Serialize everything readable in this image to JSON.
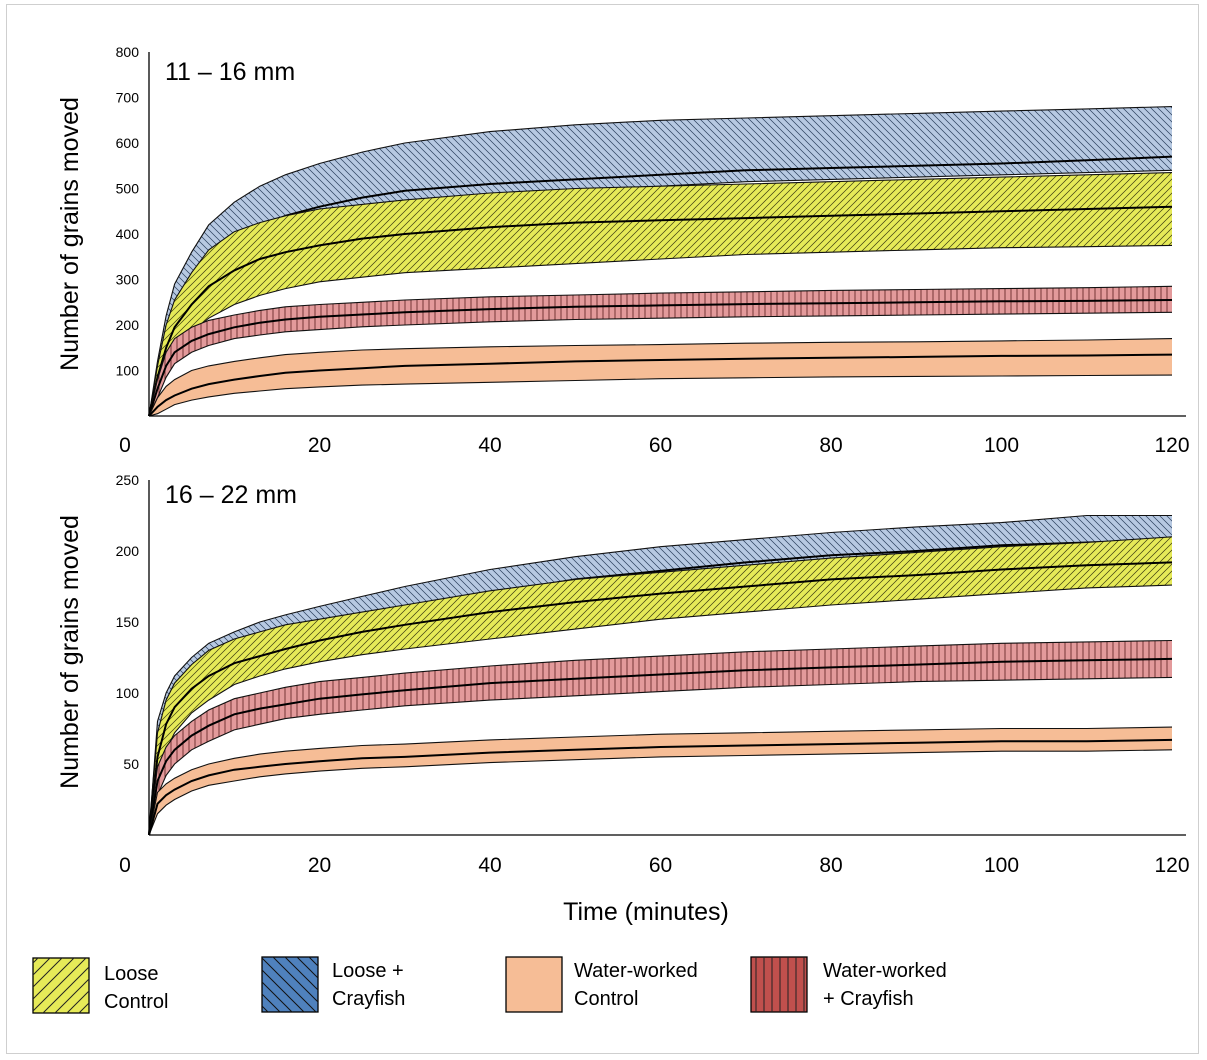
{
  "chart_data": [
    {
      "type": "area",
      "panel_label": "11 – 16 mm",
      "ylabel": "Number of grains moved",
      "xlabel": "",
      "xlim": [
        0,
        120
      ],
      "ylim": [
        0,
        800
      ],
      "x_ticks": [
        "0",
        "20",
        "40",
        "60",
        "80",
        "100",
        "120"
      ],
      "y_ticks": [
        "100",
        "200",
        "300",
        "400",
        "500",
        "600",
        "700",
        "800"
      ],
      "x": [
        0,
        1,
        2,
        3,
        5,
        7,
        10,
        13,
        16,
        20,
        25,
        30,
        40,
        50,
        60,
        70,
        80,
        90,
        100,
        110,
        120
      ],
      "series": [
        {
          "name": "Loose + Crayfish",
          "color": "#b7c9e2",
          "pattern": "back-diagonal",
          "upper": [
            0,
            120,
            220,
            290,
            360,
            420,
            470,
            505,
            530,
            555,
            580,
            600,
            625,
            640,
            650,
            655,
            660,
            665,
            670,
            675,
            680
          ],
          "mean": [
            0,
            90,
            165,
            220,
            290,
            335,
            385,
            415,
            440,
            460,
            480,
            495,
            510,
            520,
            530,
            540,
            545,
            550,
            555,
            562,
            570
          ],
          "lower": [
            0,
            70,
            125,
            175,
            240,
            285,
            335,
            370,
            395,
            420,
            440,
            455,
            480,
            495,
            505,
            515,
            520,
            525,
            530,
            535,
            540
          ]
        },
        {
          "name": "Loose Control",
          "color": "#e6ea58",
          "pattern": "forward-diagonal",
          "upper": [
            0,
            110,
            200,
            255,
            315,
            365,
            405,
            425,
            440,
            455,
            465,
            475,
            490,
            500,
            505,
            510,
            515,
            520,
            525,
            530,
            535
          ],
          "mean": [
            0,
            85,
            150,
            195,
            245,
            285,
            320,
            345,
            360,
            375,
            390,
            400,
            415,
            425,
            430,
            435,
            440,
            445,
            450,
            455,
            460
          ],
          "lower": [
            0,
            45,
            100,
            140,
            185,
            215,
            245,
            265,
            280,
            295,
            305,
            315,
            325,
            335,
            345,
            355,
            360,
            365,
            370,
            372,
            375
          ]
        },
        {
          "name": "Water-worked + Crayfish",
          "color": "#e39a9b",
          "pattern": "vertical",
          "upper": [
            0,
            80,
            140,
            170,
            195,
            210,
            222,
            232,
            240,
            245,
            250,
            255,
            262,
            266,
            270,
            273,
            276,
            278,
            280,
            282,
            285
          ],
          "mean": [
            0,
            60,
            110,
            140,
            165,
            180,
            195,
            205,
            212,
            218,
            223,
            228,
            235,
            240,
            243,
            246,
            248,
            250,
            252,
            253,
            255
          ],
          "lower": [
            0,
            40,
            85,
            115,
            140,
            155,
            170,
            178,
            185,
            190,
            196,
            200,
            207,
            212,
            215,
            218,
            220,
            222,
            224,
            226,
            228
          ]
        },
        {
          "name": "Water-worked Control",
          "color": "#f6bd96",
          "pattern": "none",
          "upper": [
            0,
            40,
            65,
            80,
            100,
            110,
            120,
            128,
            135,
            140,
            145,
            148,
            152,
            155,
            157,
            160,
            162,
            163,
            165,
            167,
            170
          ],
          "mean": [
            0,
            20,
            35,
            45,
            60,
            70,
            80,
            88,
            95,
            100,
            105,
            110,
            115,
            120,
            123,
            126,
            128,
            130,
            132,
            133,
            135
          ],
          "lower": [
            0,
            5,
            15,
            25,
            35,
            42,
            50,
            55,
            60,
            64,
            68,
            70,
            74,
            78,
            82,
            84,
            86,
            87,
            88,
            89,
            90
          ]
        }
      ]
    },
    {
      "type": "area",
      "panel_label": "16 – 22 mm",
      "ylabel": "Number of grains moved",
      "xlabel": "Time (minutes)",
      "xlim": [
        0,
        120
      ],
      "ylim": [
        0,
        250
      ],
      "x_ticks": [
        "0",
        "20",
        "40",
        "60",
        "80",
        "100",
        "120"
      ],
      "y_ticks": [
        "50",
        "100",
        "150",
        "200",
        "250"
      ],
      "x": [
        0,
        1,
        2,
        3,
        5,
        7,
        10,
        13,
        16,
        20,
        25,
        30,
        40,
        50,
        60,
        70,
        80,
        90,
        100,
        110,
        120
      ],
      "series": [
        {
          "name": "Loose + Crayfish",
          "color": "#b7c9e2",
          "pattern": "back-diagonal",
          "upper": [
            0,
            80,
            100,
            112,
            125,
            135,
            143,
            150,
            155,
            161,
            168,
            175,
            187,
            196,
            203,
            208,
            213,
            217,
            220,
            225,
            225
          ],
          "mean": [
            0,
            70,
            90,
            100,
            112,
            120,
            130,
            136,
            142,
            148,
            155,
            160,
            170,
            180,
            186,
            192,
            197,
            200,
            204,
            206,
            208
          ],
          "lower": [
            0,
            60,
            80,
            92,
            104,
            112,
            122,
            128,
            133,
            139,
            145,
            150,
            160,
            168,
            174,
            180,
            185,
            189,
            192,
            195,
            196
          ]
        },
        {
          "name": "Loose Control",
          "color": "#e6ea58",
          "pattern": "forward-diagonal",
          "upper": [
            0,
            72,
            95,
            107,
            120,
            130,
            138,
            143,
            148,
            152,
            157,
            162,
            172,
            180,
            185,
            190,
            195,
            199,
            203,
            206,
            210
          ],
          "mean": [
            0,
            55,
            78,
            90,
            103,
            112,
            121,
            126,
            131,
            137,
            143,
            148,
            157,
            164,
            170,
            175,
            180,
            183,
            187,
            190,
            192
          ],
          "lower": [
            0,
            40,
            60,
            72,
            86,
            95,
            106,
            112,
            117,
            122,
            127,
            131,
            138,
            145,
            152,
            157,
            162,
            166,
            170,
            174,
            176
          ]
        },
        {
          "name": "Water-worked + Crayfish",
          "color": "#e39a9b",
          "pattern": "vertical",
          "upper": [
            0,
            48,
            62,
            70,
            80,
            88,
            96,
            100,
            104,
            108,
            111,
            114,
            119,
            123,
            126,
            129,
            131,
            133,
            135,
            136,
            137
          ],
          "mean": [
            0,
            38,
            52,
            60,
            70,
            77,
            85,
            89,
            92,
            96,
            99,
            102,
            107,
            110,
            113,
            116,
            118,
            120,
            122,
            123,
            124
          ],
          "lower": [
            0,
            28,
            42,
            50,
            60,
            66,
            74,
            78,
            82,
            85,
            88,
            91,
            95,
            98,
            101,
            104,
            106,
            108,
            109,
            110,
            111
          ]
        },
        {
          "name": "Water-worked Control",
          "color": "#f6bd96",
          "pattern": "none",
          "upper": [
            0,
            30,
            36,
            40,
            46,
            50,
            54,
            57,
            59,
            61,
            63,
            64,
            67,
            69,
            71,
            72,
            73,
            74,
            75,
            75,
            76
          ],
          "mean": [
            0,
            22,
            28,
            32,
            38,
            42,
            46,
            48,
            50,
            52,
            54,
            55,
            58,
            60,
            62,
            63,
            64,
            65,
            66,
            66,
            67
          ],
          "lower": [
            0,
            15,
            21,
            25,
            31,
            35,
            38,
            41,
            43,
            45,
            47,
            48,
            51,
            53,
            55,
            56,
            57,
            58,
            59,
            59,
            60
          ]
        }
      ]
    }
  ],
  "legend": {
    "items": [
      {
        "id": "loose-control",
        "line1": "Loose",
        "line2": "Control",
        "color": "#e6ea58",
        "pattern": "forward-diagonal"
      },
      {
        "id": "loose-crayfish",
        "line1": "Loose  +",
        "line2": "Crayfish",
        "color": "#4f81bd",
        "pattern": "back-diagonal"
      },
      {
        "id": "water-worked-control",
        "line1": "Water-worked",
        "line2": "Control",
        "color": "#f6bd96",
        "pattern": "none"
      },
      {
        "id": "water-worked-crayfish",
        "line1": "Water-worked",
        "line2": "+ Crayfish",
        "color": "#c0504d",
        "pattern": "vertical"
      }
    ]
  }
}
